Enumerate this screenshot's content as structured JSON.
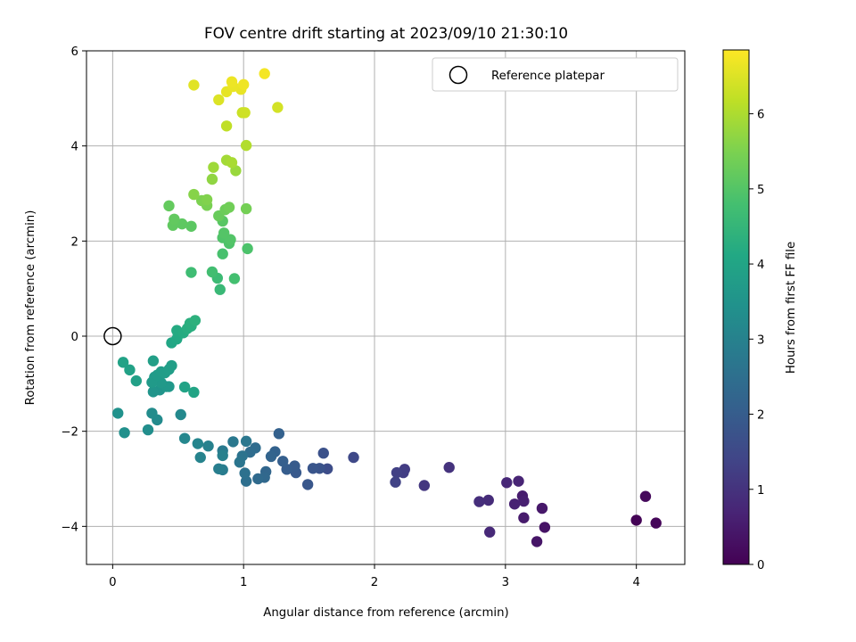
{
  "chart_data": {
    "type": "scatter",
    "title": "FOV centre drift starting at 2023/09/10 21:30:10",
    "xlabel": "Angular distance from reference (arcmin)",
    "ylabel": "Rotation from reference (arcmin)",
    "xlim": [
      -0.2,
      4.37
    ],
    "ylim": [
      -4.8,
      6.0
    ],
    "xticks": [
      0,
      1,
      2,
      3,
      4
    ],
    "yticks": [
      -4,
      -2,
      0,
      2,
      4,
      6
    ],
    "xtick_labels": [
      "0",
      "1",
      "2",
      "3",
      "4"
    ],
    "ytick_labels": [
      "−4",
      "−2",
      "0",
      "2",
      "4",
      "6"
    ],
    "grid": true,
    "legend": {
      "position": "top-right",
      "label": "Reference platepar"
    },
    "reference": {
      "x": 0,
      "y": 0
    },
    "colorbar": {
      "label": "Hours from first FF file",
      "colormap": "viridis",
      "range": [
        0,
        6.85
      ],
      "ticks": [
        0,
        1,
        2,
        3,
        4,
        5,
        6
      ],
      "tick_labels": [
        "0",
        "1",
        "2",
        "3",
        "4",
        "5",
        "6"
      ]
    },
    "points": [
      [
        4.0,
        -3.87,
        0.05
      ],
      [
        4.15,
        -3.93,
        0.1
      ],
      [
        4.07,
        -3.37,
        0.15
      ],
      [
        3.3,
        -4.02,
        0.35
      ],
      [
        3.24,
        -4.32,
        0.4
      ],
      [
        3.28,
        -3.62,
        0.45
      ],
      [
        3.14,
        -3.82,
        0.5
      ],
      [
        3.13,
        -3.36,
        0.55
      ],
      [
        3.14,
        -3.47,
        0.6
      ],
      [
        3.07,
        -3.53,
        0.65
      ],
      [
        3.1,
        -3.05,
        0.7
      ],
      [
        3.01,
        -3.08,
        0.75
      ],
      [
        2.88,
        -4.12,
        0.8
      ],
      [
        2.87,
        -3.45,
        0.85
      ],
      [
        2.8,
        -3.48,
        0.9
      ],
      [
        2.57,
        -2.76,
        1.0
      ],
      [
        2.38,
        -3.14,
        1.1
      ],
      [
        2.23,
        -2.8,
        1.2
      ],
      [
        2.22,
        -2.87,
        1.25
      ],
      [
        2.17,
        -2.87,
        1.3
      ],
      [
        2.16,
        -3.07,
        1.35
      ],
      [
        1.84,
        -2.55,
        1.5
      ],
      [
        1.64,
        -2.79,
        1.6
      ],
      [
        1.61,
        -2.46,
        1.7
      ],
      [
        1.58,
        -2.78,
        1.75
      ],
      [
        1.53,
        -2.78,
        1.8
      ],
      [
        1.49,
        -3.12,
        1.85
      ],
      [
        1.4,
        -2.87,
        1.9
      ],
      [
        1.39,
        -2.73,
        1.95
      ],
      [
        1.33,
        -2.8,
        2.0
      ],
      [
        1.3,
        -2.63,
        2.05
      ],
      [
        1.27,
        -2.05,
        2.1
      ],
      [
        1.24,
        -2.43,
        2.15
      ],
      [
        1.21,
        -2.53,
        2.2
      ],
      [
        1.17,
        -2.85,
        2.25
      ],
      [
        1.16,
        -2.97,
        2.3
      ],
      [
        1.11,
        -3.0,
        2.35
      ],
      [
        1.09,
        -2.35,
        2.4
      ],
      [
        1.05,
        -2.44,
        2.45
      ],
      [
        1.02,
        -3.05,
        2.5
      ],
      [
        1.01,
        -2.88,
        2.55
      ],
      [
        0.99,
        -2.52,
        2.6
      ],
      [
        0.97,
        -2.65,
        2.65
      ],
      [
        1.02,
        -2.21,
        2.7
      ],
      [
        0.92,
        -2.22,
        2.75
      ],
      [
        0.84,
        -2.41,
        2.8
      ],
      [
        0.84,
        -2.81,
        2.85
      ],
      [
        0.81,
        -2.79,
        2.9
      ],
      [
        0.84,
        -2.51,
        2.95
      ],
      [
        0.73,
        -2.31,
        3.0
      ],
      [
        0.67,
        -2.55,
        3.05
      ],
      [
        0.65,
        -2.26,
        3.1
      ],
      [
        0.55,
        -2.15,
        3.15
      ],
      [
        0.52,
        -1.65,
        3.2
      ],
      [
        0.34,
        -1.76,
        3.25
      ],
      [
        0.3,
        -1.62,
        3.3
      ],
      [
        0.27,
        -1.97,
        3.35
      ],
      [
        0.09,
        -2.03,
        3.4
      ],
      [
        0.04,
        -1.62,
        3.45
      ],
      [
        0.36,
        -1.13,
        3.5
      ],
      [
        0.31,
        -1.17,
        3.55
      ],
      [
        0.41,
        -1.06,
        3.6
      ],
      [
        0.43,
        -1.06,
        3.62
      ],
      [
        0.37,
        -0.98,
        3.65
      ],
      [
        0.32,
        -0.86,
        3.68
      ],
      [
        0.3,
        -0.97,
        3.7
      ],
      [
        0.34,
        -0.82,
        3.72
      ],
      [
        0.37,
        -0.75,
        3.75
      ],
      [
        0.4,
        -0.77,
        3.78
      ],
      [
        0.43,
        -0.7,
        3.8
      ],
      [
        0.45,
        -0.62,
        3.82
      ],
      [
        0.31,
        -0.52,
        3.85
      ],
      [
        0.18,
        -0.94,
        3.88
      ],
      [
        0.13,
        -0.71,
        3.9
      ],
      [
        0.08,
        -0.55,
        3.92
      ],
      [
        0.55,
        -1.07,
        3.95
      ],
      [
        0.62,
        -1.18,
        4.0
      ],
      [
        0.45,
        -0.14,
        4.05
      ],
      [
        0.49,
        -0.06,
        4.1
      ],
      [
        0.5,
        0.02,
        4.15
      ],
      [
        0.49,
        0.12,
        4.18
      ],
      [
        0.54,
        0.07,
        4.2
      ],
      [
        0.57,
        0.16,
        4.25
      ],
      [
        0.6,
        0.21,
        4.28
      ],
      [
        0.59,
        0.27,
        4.3
      ],
      [
        0.63,
        0.33,
        4.35
      ],
      [
        0.82,
        0.98,
        4.6
      ],
      [
        0.8,
        1.22,
        4.65
      ],
      [
        0.6,
        1.34,
        4.7
      ],
      [
        0.76,
        1.35,
        4.75
      ],
      [
        0.93,
        1.21,
        4.8
      ],
      [
        0.84,
        1.73,
        4.85
      ],
      [
        1.03,
        1.84,
        4.9
      ],
      [
        0.89,
        1.95,
        4.92
      ],
      [
        0.84,
        2.07,
        4.95
      ],
      [
        0.9,
        2.03,
        4.98
      ],
      [
        0.85,
        2.17,
        5.0
      ],
      [
        0.84,
        2.42,
        5.05
      ],
      [
        0.6,
        2.31,
        5.1
      ],
      [
        0.53,
        2.36,
        5.12
      ],
      [
        0.46,
        2.33,
        5.15
      ],
      [
        0.47,
        2.46,
        5.18
      ],
      [
        0.43,
        2.74,
        5.2
      ],
      [
        0.81,
        2.53,
        5.25
      ],
      [
        0.86,
        2.66,
        5.3
      ],
      [
        0.89,
        2.71,
        5.35
      ],
      [
        1.02,
        2.68,
        5.4
      ],
      [
        0.72,
        2.75,
        5.45
      ],
      [
        0.68,
        2.85,
        5.5
      ],
      [
        0.72,
        2.87,
        5.55
      ],
      [
        0.62,
        2.98,
        5.6
      ],
      [
        0.76,
        3.3,
        5.7
      ],
      [
        0.94,
        3.48,
        5.8
      ],
      [
        0.77,
        3.55,
        5.85
      ],
      [
        0.87,
        3.7,
        5.9
      ],
      [
        0.91,
        3.65,
        5.95
      ],
      [
        1.02,
        4.01,
        6.05
      ],
      [
        0.87,
        4.42,
        6.2
      ],
      [
        0.99,
        4.7,
        6.3
      ],
      [
        1.01,
        4.7,
        6.35
      ],
      [
        1.26,
        4.81,
        6.4
      ],
      [
        0.81,
        4.97,
        6.5
      ],
      [
        0.62,
        5.28,
        6.55
      ],
      [
        0.87,
        5.14,
        6.6
      ],
      [
        0.98,
        5.19,
        6.62
      ],
      [
        0.92,
        5.25,
        6.65
      ],
      [
        0.91,
        5.35,
        6.68
      ],
      [
        1.0,
        5.29,
        6.7
      ],
      [
        1.16,
        5.52,
        6.75
      ]
    ]
  }
}
